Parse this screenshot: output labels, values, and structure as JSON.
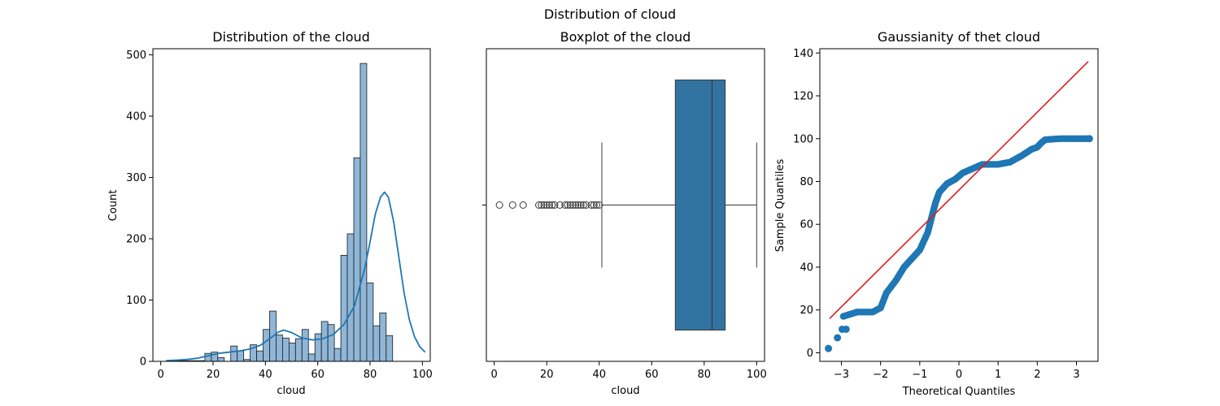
{
  "figure": {
    "suptitle": "Distribution of cloud"
  },
  "chart_data": [
    {
      "type": "histogram",
      "title": "Distribution of the cloud",
      "xlabel": "cloud",
      "ylabel": "Count",
      "xlim": [
        -3,
        103
      ],
      "ylim": [
        0,
        510
      ],
      "xticks": [
        0,
        20,
        40,
        60,
        80,
        100
      ],
      "yticks": [
        0,
        100,
        200,
        300,
        400,
        500
      ],
      "bin_edges": [
        2,
        4.475,
        6.95,
        9.425,
        11.9,
        14.375,
        16.85,
        19.325,
        21.8,
        24.275,
        26.75,
        29.225,
        31.7,
        34.175,
        36.65,
        39.125,
        41.6,
        44.075,
        46.55,
        49.025,
        51.5,
        53.975,
        56.45,
        58.925,
        61.4,
        63.875,
        66.35,
        68.825,
        71.3,
        73.775,
        76.25,
        78.725,
        81.2,
        83.675,
        86.15,
        88.625,
        91.1,
        93.575,
        96.05,
        98.525,
        101
      ],
      "counts": [
        0,
        1,
        1,
        1,
        1,
        1,
        13,
        15,
        6,
        0,
        25,
        17,
        3,
        27,
        17,
        52,
        82,
        43,
        38,
        30,
        37,
        52,
        12,
        45,
        65,
        60,
        21,
        173,
        208,
        332,
        486,
        128,
        58,
        79,
        42,
        0,
        0,
        0,
        0,
        0
      ],
      "kde": {
        "x": [
          2,
          6,
          10,
          14,
          18,
          22,
          26,
          30,
          34,
          38,
          42,
          45,
          47,
          50,
          54,
          58,
          62,
          66,
          70,
          74,
          78,
          80,
          82,
          84,
          85.5,
          87,
          89,
          91,
          93,
          95,
          97,
          99,
          101
        ],
        "y": [
          1,
          2,
          3,
          5,
          9,
          13,
          15,
          17,
          20,
          26,
          38,
          48,
          51,
          47,
          38,
          35,
          37,
          44,
          60,
          90,
          152,
          195,
          240,
          268,
          276,
          268,
          228,
          170,
          112,
          68,
          40,
          24,
          15
        ]
      },
      "colors": {
        "bar_fill": "#8fb6d7",
        "bar_edge": "#1a1a1a",
        "kde": "#1f77b4"
      }
    },
    {
      "type": "boxplot",
      "title": "Boxplot of the cloud",
      "xlabel": "cloud",
      "xlim": [
        -3,
        103
      ],
      "xticks": [
        0,
        20,
        40,
        60,
        80,
        100
      ],
      "yticks": [
        ""
      ],
      "box": {
        "whisker_low": 41,
        "q1": 69,
        "median": 83,
        "q3": 88,
        "whisker_high": 100
      },
      "outliers": [
        2,
        7,
        11,
        17,
        18,
        19,
        20,
        21,
        22,
        23,
        25,
        27,
        28,
        29,
        30,
        31,
        32,
        33,
        34,
        35,
        37,
        38,
        39,
        40
      ],
      "colors": {
        "box_fill": "#3274a1",
        "line": "#3a3a3a"
      }
    },
    {
      "type": "scatter",
      "title": "Gaussianity of thet  cloud",
      "xlabel": "Theoretical Quantiles",
      "ylabel": "Sample Quantiles",
      "xlim": [
        -3.55,
        3.55
      ],
      "ylim": [
        -4,
        142
      ],
      "xticks": [
        -3,
        -2,
        -1,
        0,
        1,
        2,
        3
      ],
      "yticks": [
        0,
        20,
        40,
        60,
        80,
        100,
        120,
        140
      ],
      "reference_line": {
        "x": [
          -3.3,
          3.3
        ],
        "y": [
          16,
          136
        ]
      },
      "qq_curve": {
        "x": [
          -2.95,
          -2.6,
          -2.2,
          -2.0,
          -1.85,
          -1.6,
          -1.4,
          -1.2,
          -1.0,
          -0.8,
          -0.7,
          -0.6,
          -0.5,
          -0.3,
          -0.1,
          0.1,
          0.35,
          0.6,
          1.0,
          1.3,
          1.6,
          1.85,
          2.0,
          2.1,
          2.2,
          2.6,
          3.0,
          3.25
        ],
        "y": [
          17,
          19,
          19,
          21,
          28,
          34,
          40,
          44,
          48,
          56,
          63,
          70,
          75,
          79,
          81,
          84,
          86,
          88,
          88,
          89,
          92,
          95,
          96,
          98,
          99.5,
          100,
          100,
          100
        ]
      },
      "tail_points": [
        {
          "x": -3.33,
          "y": 2
        },
        {
          "x": -3.1,
          "y": 7
        },
        {
          "x": -2.98,
          "y": 11
        },
        {
          "x": -2.88,
          "y": 11
        },
        {
          "x": 3.33,
          "y": 100
        }
      ],
      "colors": {
        "points": "#1f77b4",
        "line": "#e41a1c"
      }
    }
  ]
}
